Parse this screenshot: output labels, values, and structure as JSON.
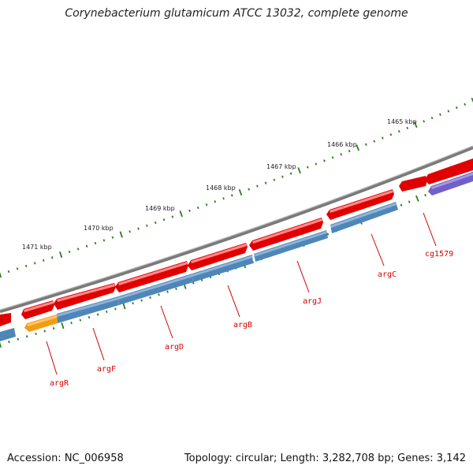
{
  "title": "Corynebacterium glutamicum ATCC 13032, complete genome",
  "footer": {
    "accession": "Accession: NC_006958",
    "summary": "Topology: circular; Length: 3,282,708 bp; Genes: 3,142"
  },
  "colors": {
    "backbone": "#7a7a7a",
    "tick": "#2e7d1e",
    "forward_gene": "#e10000",
    "reverse_gene": "#4f86b8",
    "highlight_orange": "#f39c12",
    "highlight_purple": "#7060c8",
    "label": "#d40000"
  },
  "scale_labels": [
    "1465 kbp",
    "1466 kbp",
    "1467 kbp",
    "1468 kbp",
    "1469 kbp",
    "1470 kbp",
    "1471 kbp"
  ],
  "gene_labels": [
    "cg1579",
    "argC",
    "argJ",
    "argB",
    "argD",
    "argF",
    "argR"
  ]
}
